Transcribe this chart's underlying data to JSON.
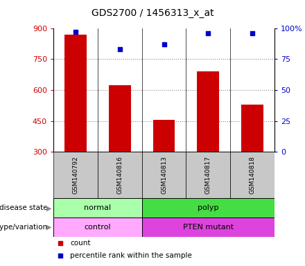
{
  "title": "GDS2700 / 1456313_x_at",
  "samples": [
    "GSM140792",
    "GSM140816",
    "GSM140813",
    "GSM140817",
    "GSM140818"
  ],
  "counts": [
    870,
    625,
    455,
    690,
    530
  ],
  "percentile_ranks": [
    97,
    83,
    87,
    96,
    96
  ],
  "ylim_left": [
    300,
    900
  ],
  "ylim_right": [
    0,
    100
  ],
  "yticks_left": [
    300,
    450,
    600,
    750,
    900
  ],
  "yticks_right": [
    0,
    25,
    50,
    75,
    100
  ],
  "disease_normal_color": "#AAFFAA",
  "disease_polyp_color": "#44DD44",
  "geno_control_color": "#FFAAFF",
  "geno_mutant_color": "#DD44DD",
  "bar_color": "#CC0000",
  "dot_color": "#0000CC",
  "label_row1": "disease state",
  "label_row2": "genotype/variation",
  "legend_count": "count",
  "legend_pct": "percentile rank within the sample",
  "tick_label_color_left": "#CC0000",
  "tick_label_color_right": "#0000CC",
  "sample_box_color": "#C8C8C8"
}
